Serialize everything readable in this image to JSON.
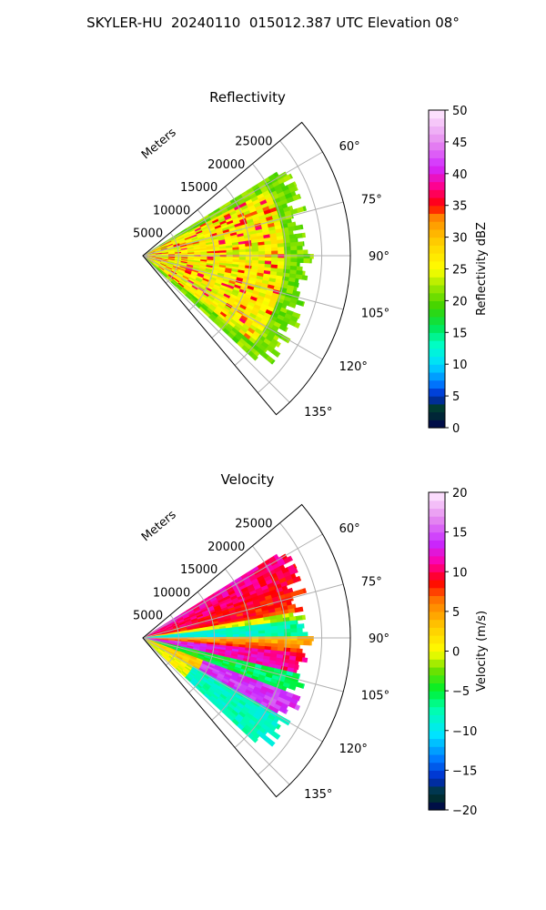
{
  "suptitle": "SKYLER-HU  20240110  015012.387 UTC Elevation 08°",
  "chart_data": [
    {
      "type": "heatmap",
      "projection": "polar sector (PPI)",
      "title": "Reflectivity",
      "radial_label": "Meters",
      "radial_ticks": [
        5000,
        10000,
        15000,
        20000,
        25000
      ],
      "radial_tick_labels": [
        "5000",
        "10000",
        "15000",
        "20000",
        "25000"
      ],
      "radial_range": [
        0,
        29000
      ],
      "data_extent_m": 24000,
      "azimuth_range_deg": [
        50,
        140
      ],
      "data_azimuth_range_deg": [
        58,
        132
      ],
      "angular_ticks": [
        60,
        75,
        90,
        105,
        120,
        135
      ],
      "angular_tick_labels": [
        "60°",
        "75°",
        "90°",
        "105°",
        "120°",
        "135°"
      ],
      "grid": true,
      "colorbar": {
        "label": "Reflectivity dBZ",
        "range": [
          0,
          50
        ],
        "ticks": [
          0,
          5,
          10,
          15,
          20,
          25,
          30,
          35,
          40,
          45,
          50
        ],
        "tick_labels": [
          "0",
          "5",
          "10",
          "15",
          "20",
          "25",
          "30",
          "35",
          "40",
          "45",
          "50"
        ],
        "placement": "right"
      },
      "field_description": "mostly 22–30 dBZ (yellow/orange) with scattered 33–38 dBZ cells (red), edges 18–22 dBZ (green)"
    },
    {
      "type": "heatmap",
      "projection": "polar sector (PPI)",
      "title": "Velocity",
      "radial_label": "Meters",
      "radial_ticks": [
        5000,
        10000,
        15000,
        20000,
        25000
      ],
      "radial_tick_labels": [
        "5000",
        "10000",
        "15000",
        "20000",
        "25000"
      ],
      "radial_range": [
        0,
        29000
      ],
      "data_extent_m": 24000,
      "azimuth_range_deg": [
        50,
        140
      ],
      "data_azimuth_range_deg": [
        58,
        132
      ],
      "angular_ticks": [
        60,
        75,
        90,
        105,
        120,
        135
      ],
      "angular_tick_labels": [
        "60°",
        "75°",
        "90°",
        "105°",
        "120°",
        "135°"
      ],
      "grid": true,
      "colorbar": {
        "label": "Velocity (m/s)",
        "range": [
          -20,
          20
        ],
        "ticks": [
          -20,
          -15,
          -10,
          -5,
          0,
          5,
          10,
          15,
          20
        ],
        "tick_labels": [
          "−20",
          "−15",
          "−10",
          "−5",
          "0",
          "5",
          "10",
          "15",
          "20"
        ],
        "placement": "right"
      },
      "field_description": "north part +8 to +12 m/s (red/orange), band of -10 m/s (cyan) near 85°, +13 m/s (magenta) near 100°, south -7 m/s (green) with +14 m/s (magenta) near 115°"
    }
  ]
}
